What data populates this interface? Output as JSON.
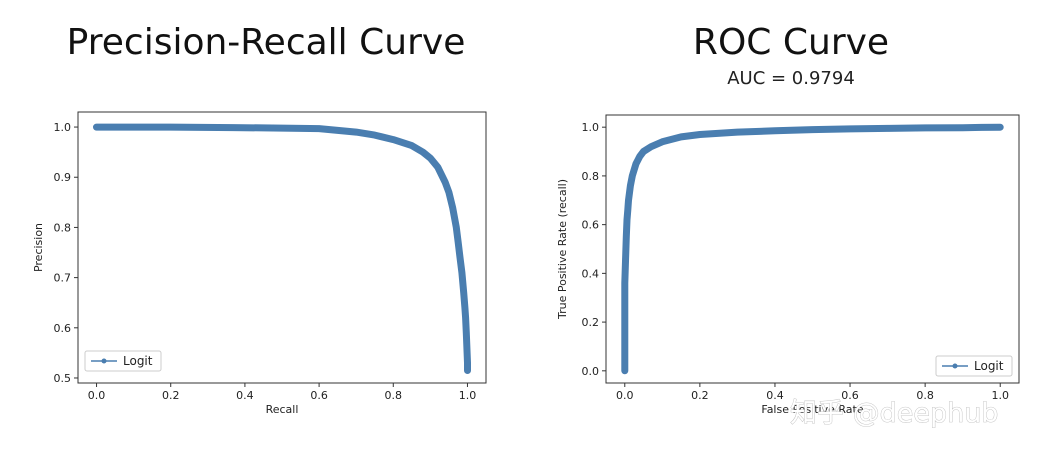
{
  "pr": {
    "title": "Precision-Recall Curve"
  },
  "roc": {
    "title": "ROC Curve",
    "subtitle": "AUC = 0.9794"
  },
  "watermark": "知乎 @deephub",
  "colors": {
    "series": "#4a7eb0",
    "axis": "#333333"
  },
  "chart_data": [
    {
      "type": "line",
      "title": "Precision-Recall Curve",
      "xlabel": "Recall",
      "ylabel": "Precision",
      "xlim": [
        -0.05,
        1.05
      ],
      "ylim": [
        0.49,
        1.03
      ],
      "xticks": [
        "0.0",
        "0.2",
        "0.4",
        "0.6",
        "0.8",
        "1.0"
      ],
      "yticks": [
        "0.5",
        "0.6",
        "0.7",
        "0.8",
        "0.9",
        "1.0"
      ],
      "grid": false,
      "legend": "lower-left",
      "series": [
        {
          "name": "Logit",
          "x": [
            0.0,
            0.2,
            0.37,
            0.5,
            0.6,
            0.7,
            0.75,
            0.8,
            0.85,
            0.88,
            0.9,
            0.92,
            0.94,
            0.95,
            0.96,
            0.97,
            0.975,
            0.98,
            0.985,
            0.99,
            0.993,
            0.995,
            0.997,
            0.998,
            0.999,
            1.0,
            1.0
          ],
          "y": [
            1.0,
            1.0,
            0.999,
            0.998,
            0.997,
            0.99,
            0.984,
            0.975,
            0.963,
            0.95,
            0.938,
            0.92,
            0.89,
            0.87,
            0.84,
            0.8,
            0.77,
            0.74,
            0.71,
            0.67,
            0.64,
            0.62,
            0.59,
            0.57,
            0.55,
            0.53,
            0.515
          ]
        }
      ]
    },
    {
      "type": "line",
      "title": "ROC Curve",
      "subtitle": "AUC = 0.9794",
      "xlabel": "False Positive Rate",
      "ylabel": "True Positive Rate (recall)",
      "xlim": [
        -0.05,
        1.05
      ],
      "ylim": [
        -0.05,
        1.05
      ],
      "xticks": [
        "0.0",
        "0.2",
        "0.4",
        "0.6",
        "0.8",
        "1.0"
      ],
      "yticks": [
        "0.0",
        "0.2",
        "0.4",
        "0.6",
        "0.8",
        "1.0"
      ],
      "grid": false,
      "legend": "lower-right",
      "series": [
        {
          "name": "Logit",
          "x": [
            0.0,
            0.0,
            0.0,
            0.0,
            0.0,
            0.002,
            0.004,
            0.006,
            0.008,
            0.01,
            0.015,
            0.02,
            0.03,
            0.04,
            0.05,
            0.07,
            0.1,
            0.15,
            0.2,
            0.3,
            0.4,
            0.5,
            0.6,
            0.7,
            0.8,
            0.9,
            0.95,
            1.0
          ],
          "y": [
            0.0,
            0.17,
            0.2,
            0.3,
            0.36,
            0.45,
            0.55,
            0.62,
            0.66,
            0.7,
            0.76,
            0.8,
            0.85,
            0.88,
            0.9,
            0.92,
            0.94,
            0.96,
            0.97,
            0.98,
            0.985,
            0.99,
            0.993,
            0.995,
            0.997,
            0.998,
            0.999,
            1.0
          ]
        }
      ]
    }
  ]
}
